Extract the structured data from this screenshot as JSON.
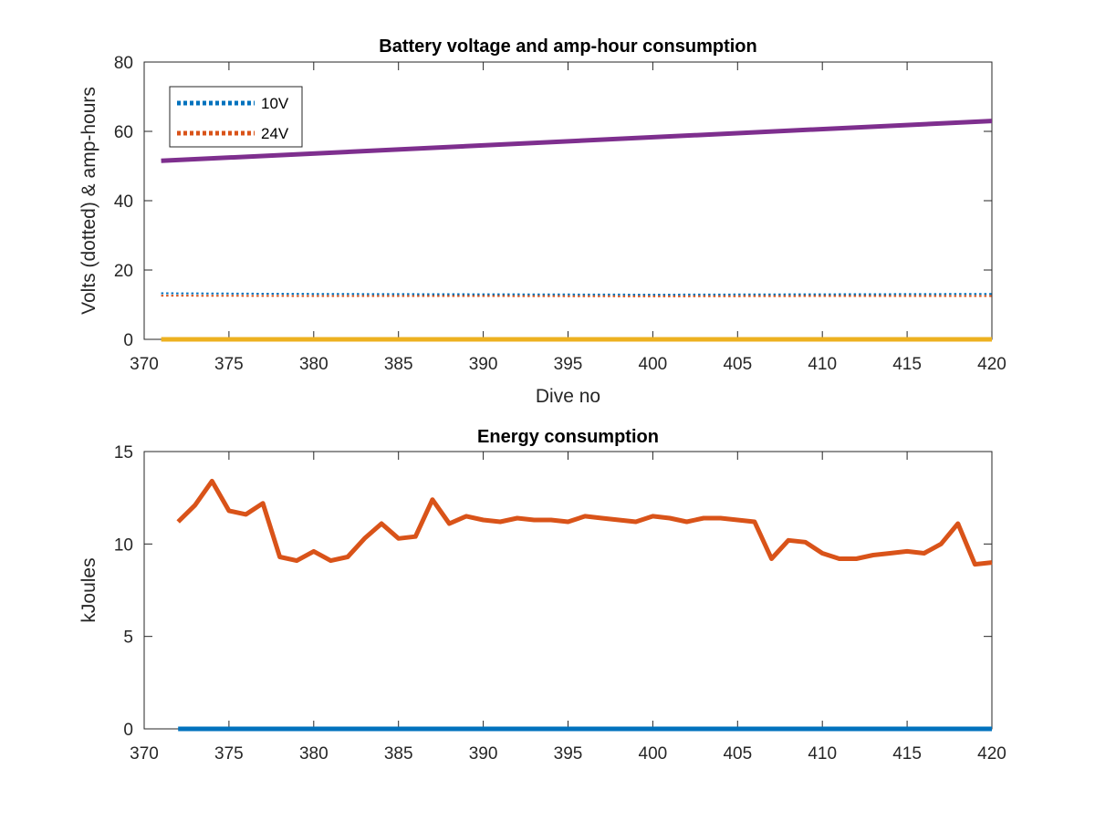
{
  "chart_data": [
    {
      "type": "line",
      "title": "Battery voltage and amp-hour consumption",
      "xlabel": "Dive no",
      "ylabel": "Volts (dotted) & amp-hours",
      "xlim": [
        370,
        420
      ],
      "ylim": [
        0,
        80
      ],
      "xticks": [
        370,
        375,
        380,
        385,
        390,
        395,
        400,
        405,
        410,
        415,
        420
      ],
      "yticks": [
        0,
        20,
        40,
        60,
        80
      ],
      "grid": false,
      "legend": {
        "placement": "top-left",
        "entries": [
          "10V",
          "24V"
        ]
      },
      "series": [
        {
          "name": "10V",
          "style": "dotted",
          "color": "#0072BD",
          "x": [
            371,
            380,
            390,
            400,
            410,
            420
          ],
          "y": [
            13.3,
            13.1,
            13.0,
            12.9,
            13.0,
            13.1
          ]
        },
        {
          "name": "24V",
          "style": "dotted",
          "color": "#D95319",
          "x": [
            371,
            380,
            390,
            400,
            410,
            420
          ],
          "y": [
            12.6,
            12.5,
            12.5,
            12.4,
            12.5,
            12.5
          ]
        },
        {
          "style": "solid",
          "color": "#7E2F8E",
          "x": [
            371,
            420
          ],
          "y": [
            51.5,
            63.0
          ]
        },
        {
          "style": "solid",
          "color": "#EDB120",
          "x": [
            371,
            420
          ],
          "y": [
            0,
            0
          ]
        }
      ]
    },
    {
      "type": "line",
      "title": "Energy consumption",
      "xlabel": "",
      "ylabel": "kJoules",
      "xlim": [
        370,
        420
      ],
      "ylim": [
        0,
        15
      ],
      "xticks": [
        370,
        375,
        380,
        385,
        390,
        395,
        400,
        405,
        410,
        415,
        420
      ],
      "yticks": [
        0,
        5,
        10,
        15
      ],
      "grid": false,
      "series": [
        {
          "style": "solid",
          "color": "#D95319",
          "x": [
            372,
            373,
            374,
            375,
            376,
            377,
            378,
            379,
            380,
            381,
            382,
            383,
            384,
            385,
            386,
            387,
            388,
            389,
            390,
            391,
            392,
            393,
            394,
            395,
            396,
            397,
            398,
            399,
            400,
            401,
            402,
            403,
            404,
            405,
            406,
            407,
            408,
            409,
            410,
            411,
            412,
            413,
            414,
            415,
            416,
            417,
            418,
            419,
            420
          ],
          "y": [
            11.2,
            12.1,
            13.4,
            11.8,
            11.6,
            12.2,
            9.3,
            9.1,
            9.6,
            9.1,
            9.3,
            10.3,
            11.1,
            10.3,
            10.4,
            12.4,
            11.1,
            11.5,
            11.3,
            11.2,
            11.4,
            11.3,
            11.3,
            11.2,
            11.5,
            11.4,
            11.3,
            11.2,
            11.5,
            11.4,
            11.2,
            11.4,
            11.4,
            11.3,
            11.2,
            9.2,
            10.2,
            10.1,
            9.5,
            9.2,
            9.2,
            9.4,
            9.5,
            9.6,
            9.5,
            10.0,
            11.1,
            8.9,
            9.0
          ]
        },
        {
          "style": "solid",
          "color": "#0072BD",
          "x": [
            372,
            420
          ],
          "y": [
            0,
            0
          ]
        }
      ]
    }
  ]
}
